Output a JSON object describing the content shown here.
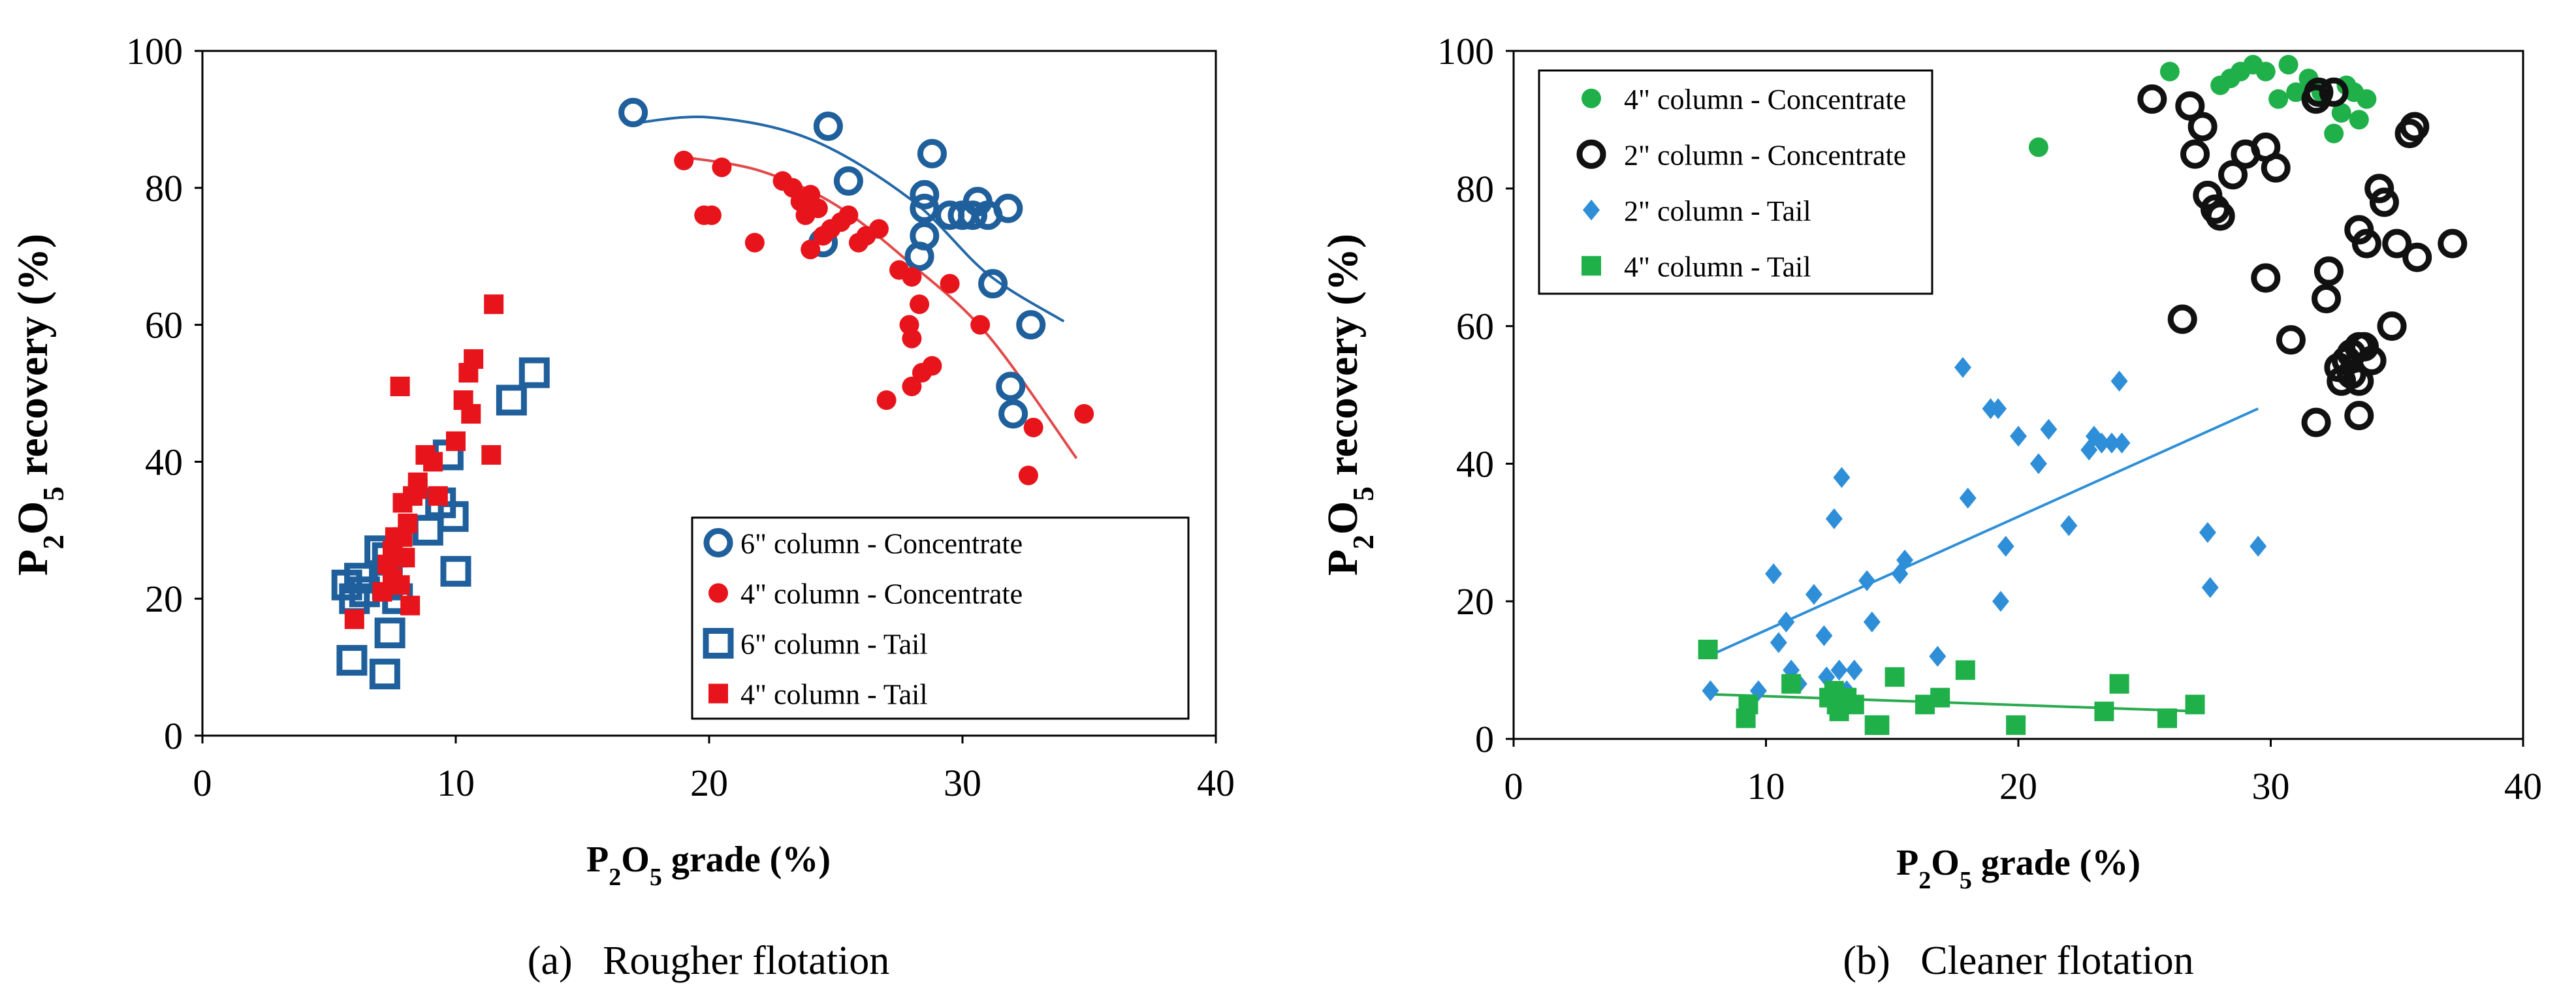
{
  "colors": {
    "blue": "#1F5F9B",
    "red": "#E8141B",
    "green": "#1FB04A",
    "black": "#111111",
    "lightblue": "#2E8FD8",
    "darkblue_line": "#2468A8",
    "red_line": "#E24A4A",
    "green_line": "#2BAA50",
    "blue_line": "#2E8FD8"
  },
  "chart_data": [
    {
      "type": "scatter",
      "panel_label": "(a)   Rougher flotation",
      "ylabel_parts": [
        "P",
        "2",
        "O",
        "5",
        " recovery (%)"
      ],
      "xlabel_parts": [
        "P",
        "2",
        "O",
        "5",
        " grade (%)"
      ],
      "xlim": [
        0,
        40
      ],
      "ylim": [
        0,
        100
      ],
      "xticks": [
        "0",
        "10",
        "20",
        "30",
        "40"
      ],
      "yticks": [
        "0",
        "20",
        "40",
        "60",
        "80",
        "100"
      ],
      "legend_position": "bottom-right",
      "series": [
        {
          "name": "6\" column - Concentrate",
          "marker": "open-circle",
          "color_key": "blue",
          "x": [
            17.0,
            24.7,
            25.5,
            24.5,
            28.5,
            28.8,
            28.5,
            29.5,
            30.0,
            30.6,
            31.0,
            31.8,
            30.4,
            28.5,
            28.3,
            31.2,
            32.7,
            31.9,
            32.0
          ],
          "y": [
            91,
            89,
            81,
            72,
            79,
            85,
            77,
            76,
            76,
            78,
            76,
            77,
            76,
            73,
            70,
            66,
            60,
            51,
            47
          ]
        },
        {
          "name": "4\" column - Concentrate",
          "marker": "filled-circle",
          "color_key": "red",
          "x": [
            19.0,
            20.5,
            19.8,
            20.1,
            21.8,
            22.9,
            23.3,
            23.6,
            24.0,
            23.8,
            24.3,
            24.0,
            24.5,
            24.8,
            25.2,
            25.5,
            25.9,
            26.2,
            26.7,
            27.5,
            27.9,
            28.3,
            28.0,
            28.0,
            28.4,
            28.8,
            28.0,
            29.5,
            30.7,
            32.8,
            34.8,
            32.6,
            27.0
          ],
          "y": [
            84,
            83,
            76,
            76,
            72,
            81,
            80,
            78,
            79,
            76,
            77,
            71,
            73,
            74,
            75,
            76,
            72,
            73,
            74,
            68,
            60,
            63,
            58,
            51,
            53,
            54,
            67,
            66,
            60,
            45,
            47,
            38,
            49
          ]
        },
        {
          "name": "6\" column - Tail",
          "marker": "open-square",
          "color_key": "blue",
          "x": [
            5.7,
            6.2,
            6.0,
            6.4,
            7.0,
            7.3,
            7.4,
            7.2,
            7.7,
            8.9,
            9.4,
            9.9,
            10.0,
            9.7,
            12.2,
            13.1,
            5.9,
            7.3
          ],
          "y": [
            22,
            23,
            20,
            21,
            27,
            26,
            15,
            9,
            20,
            30,
            34,
            32,
            24,
            41,
            49,
            53,
            11,
            22
          ]
        },
        {
          "name": "4\" column - Tail",
          "marker": "filled-square",
          "color_key": "red",
          "x": [
            11.5,
            10.7,
            10.5,
            10.3,
            10.6,
            11.4,
            10.0,
            8.8,
            9.1,
            8.5,
            8.3,
            7.9,
            7.8,
            8.1,
            7.6,
            7.5,
            7.7,
            7.3,
            7.5,
            7.1,
            7.8,
            8.0,
            8.2,
            6.0,
            7.9,
            9.3,
            8.5
          ],
          "y": [
            63,
            55,
            53,
            49,
            47,
            41,
            43,
            41,
            40,
            37,
            35,
            34,
            51,
            31,
            29,
            27,
            26,
            25,
            23,
            21,
            22,
            26,
            19,
            17,
            29,
            35,
            36
          ]
        }
      ],
      "trendlines": [
        {
          "series": "6\" column - Concentrate",
          "color_key": "darkblue_line",
          "x": [
            16.8,
            20,
            24,
            28,
            31,
            34.0
          ],
          "y": [
            89.3,
            90.3,
            87.1,
            78.2,
            67.4,
            60.5
          ]
        },
        {
          "series": "4\" column - Concentrate",
          "color_key": "red_line",
          "x": [
            19.0,
            22,
            25,
            28,
            31,
            34.5
          ],
          "y": [
            84.5,
            82.5,
            77.5,
            68.8,
            58.5,
            40.5
          ]
        }
      ]
    },
    {
      "type": "scatter",
      "panel_label": "(b)   Cleaner flotation",
      "ylabel_parts": [
        "P",
        "2",
        "O",
        "5",
        " recovery (%)"
      ],
      "xlabel_parts": [
        "P",
        "2",
        "O",
        "5",
        " grade (%)"
      ],
      "xlim": [
        0,
        40
      ],
      "ylim": [
        0,
        100
      ],
      "xticks": [
        "0",
        "10",
        "20",
        "30",
        "40"
      ],
      "yticks": [
        "0",
        "20",
        "40",
        "60",
        "80",
        "100"
      ],
      "legend_position": "top-left",
      "series": [
        {
          "name": "4\" column - Concentrate",
          "marker": "filled-circle",
          "color_key": "green",
          "x": [
            20.8,
            26.0,
            28.0,
            28.8,
            29.3,
            29.8,
            30.3,
            30.7,
            31.0,
            31.5,
            32.0,
            32.5,
            33.0,
            33.3,
            33.5,
            33.8,
            32.8,
            28.4
          ],
          "y": [
            86,
            97,
            95,
            97,
            98,
            97,
            93,
            98,
            94,
            96,
            94,
            88,
            95,
            94,
            90,
            93,
            91,
            96
          ]
        },
        {
          "name": "2\" column - Concentrate",
          "marker": "open-circle",
          "color_key": "black",
          "x": [
            25.3,
            26.8,
            27.3,
            27.5,
            27.8,
            28.0,
            28.5,
            29.0,
            29.8,
            30.2,
            30.8,
            31.8,
            32.3,
            32.5,
            32.2,
            33.5,
            33.8,
            34.3,
            34.5,
            35.0,
            35.5,
            35.7,
            37.2,
            33.0,
            33.2,
            33.5,
            33.7,
            34.0,
            32.7,
            32.8,
            33.2,
            33.5,
            26.5,
            29.8,
            31.8,
            33.5,
            34.8,
            35.8,
            27.0,
            31.9
          ],
          "y": [
            93,
            92,
            89,
            79,
            77,
            76,
            82,
            85,
            86,
            83,
            58,
            93,
            68,
            94,
            64,
            74,
            72,
            80,
            78,
            72,
            88,
            89,
            72,
            55,
            56,
            57,
            57,
            55,
            54,
            52,
            53,
            52,
            61,
            67,
            46,
            47,
            60,
            70,
            85,
            94
          ]
        },
        {
          "name": "2\" column - Tail",
          "marker": "filled-diamond",
          "color_key": "lightblue",
          "x": [
            7.8,
            9.7,
            10.3,
            10.8,
            11.0,
            11.3,
            12.3,
            12.7,
            13.0,
            13.5,
            14.0,
            14.2,
            15.5,
            15.3,
            16.8,
            17.8,
            18.0,
            18.9,
            19.2,
            19.3,
            19.5,
            20.0,
            20.8,
            21.2,
            22.0,
            22.8,
            23.0,
            23.3,
            23.7,
            24.1,
            24.0,
            27.5,
            27.6,
            29.5,
            13.2,
            11.9,
            12.4,
            12.9,
            10.5
          ],
          "y": [
            7,
            7,
            24,
            17,
            10,
            8,
            15,
            32,
            38,
            10,
            23,
            17,
            26,
            24,
            12,
            54,
            35,
            48,
            48,
            20,
            28,
            44,
            40,
            45,
            31,
            42,
            44,
            43,
            43,
            43,
            52,
            30,
            22,
            28,
            7,
            21,
            9,
            10,
            14
          ]
        },
        {
          "name": "4\" column - Tail",
          "marker": "filled-square",
          "color_key": "green",
          "x": [
            7.7,
            9.3,
            9.2,
            11.0,
            12.5,
            12.7,
            12.9,
            13.5,
            14.3,
            14.5,
            15.1,
            16.3,
            16.9,
            17.9,
            19.9,
            23.4,
            24.0,
            25.9,
            27.0,
            12.8,
            13.2
          ],
          "y": [
            13,
            5,
            3,
            8,
            6,
            7,
            4,
            5,
            2,
            2,
            9,
            5,
            6,
            10,
            2,
            4,
            8,
            3,
            5,
            5,
            6
          ]
        }
      ],
      "trendlines": [
        {
          "series": "2\" column - Tail",
          "color_key": "blue_line",
          "x": [
            7.7,
            29.5
          ],
          "y": [
            12.0,
            48.0
          ]
        },
        {
          "series": "4\" column - Tail",
          "color_key": "green_line",
          "x": [
            7.7,
            27.2
          ],
          "y": [
            6.5,
            4.0
          ]
        }
      ]
    }
  ]
}
